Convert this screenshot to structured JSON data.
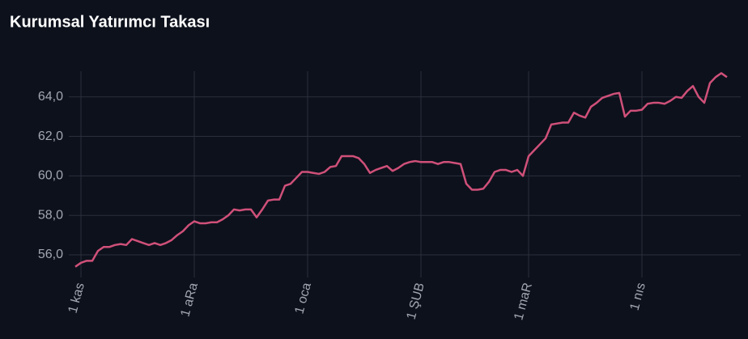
{
  "chart_data": {
    "type": "line",
    "title": "Kurumsal Yatırımcı Takası",
    "categories": [
      null,
      "1 kas",
      null,
      null,
      null,
      null,
      null,
      null,
      null,
      null,
      null,
      null,
      null,
      null,
      null,
      null,
      null,
      null,
      null,
      null,
      null,
      "1 aRa",
      null,
      null,
      null,
      null,
      null,
      null,
      null,
      null,
      null,
      null,
      null,
      null,
      null,
      null,
      null,
      null,
      null,
      null,
      null,
      "1 oca",
      null,
      null,
      null,
      null,
      null,
      null,
      null,
      null,
      null,
      null,
      null,
      null,
      null,
      null,
      null,
      null,
      null,
      null,
      null,
      "1 ŞUB",
      null,
      null,
      null,
      null,
      null,
      null,
      null,
      null,
      null,
      null,
      null,
      null,
      null,
      null,
      null,
      null,
      null,
      null,
      "1 maR",
      null,
      null,
      null,
      null,
      null,
      null,
      null,
      null,
      null,
      null,
      null,
      null,
      null,
      null,
      null,
      null,
      null,
      null,
      null,
      "1 nıs",
      null,
      null,
      null,
      null,
      null,
      null,
      null,
      null,
      null,
      null,
      null,
      null,
      null,
      null,
      null
    ],
    "values": [
      55.4,
      55.6,
      55.7,
      55.7,
      56.2,
      56.4,
      56.4,
      56.5,
      56.55,
      56.5,
      56.8,
      56.7,
      56.6,
      56.5,
      56.6,
      56.5,
      56.6,
      56.75,
      57.0,
      57.2,
      57.5,
      57.7,
      57.6,
      57.6,
      57.65,
      57.65,
      57.8,
      58.0,
      58.3,
      58.25,
      58.3,
      58.3,
      57.9,
      58.3,
      58.75,
      58.8,
      58.8,
      59.5,
      59.6,
      59.9,
      60.2,
      60.2,
      60.15,
      60.1,
      60.2,
      60.45,
      60.5,
      61.0,
      61.0,
      61.0,
      60.9,
      60.6,
      60.15,
      60.3,
      60.4,
      60.5,
      60.25,
      60.4,
      60.6,
      60.7,
      60.75,
      60.7,
      60.7,
      60.7,
      60.6,
      60.7,
      60.7,
      60.65,
      60.6,
      59.6,
      59.3,
      59.3,
      59.35,
      59.7,
      60.2,
      60.3,
      60.3,
      60.2,
      60.3,
      60.0,
      61.0,
      61.3,
      61.6,
      61.9,
      62.6,
      62.65,
      62.7,
      62.7,
      63.2,
      63.05,
      62.95,
      63.5,
      63.7,
      63.95,
      64.05,
      64.15,
      64.2,
      63.0,
      63.3,
      63.3,
      63.35,
      63.65,
      63.7,
      63.7,
      63.65,
      63.8,
      64.0,
      63.95,
      64.3,
      64.55,
      64.0,
      63.7,
      64.7,
      65.0,
      65.2,
      65.0
    ],
    "color": "#cf5079",
    "ylim": [
      55.1,
      65.3
    ],
    "yticks": [
      {
        "value": 56,
        "label": "56,0"
      },
      {
        "value": 58,
        "label": "58,0"
      },
      {
        "value": 60,
        "label": "60,0"
      },
      {
        "value": 62,
        "label": "62,0"
      },
      {
        "value": 64,
        "label": "64,0"
      }
    ],
    "grid": true
  }
}
